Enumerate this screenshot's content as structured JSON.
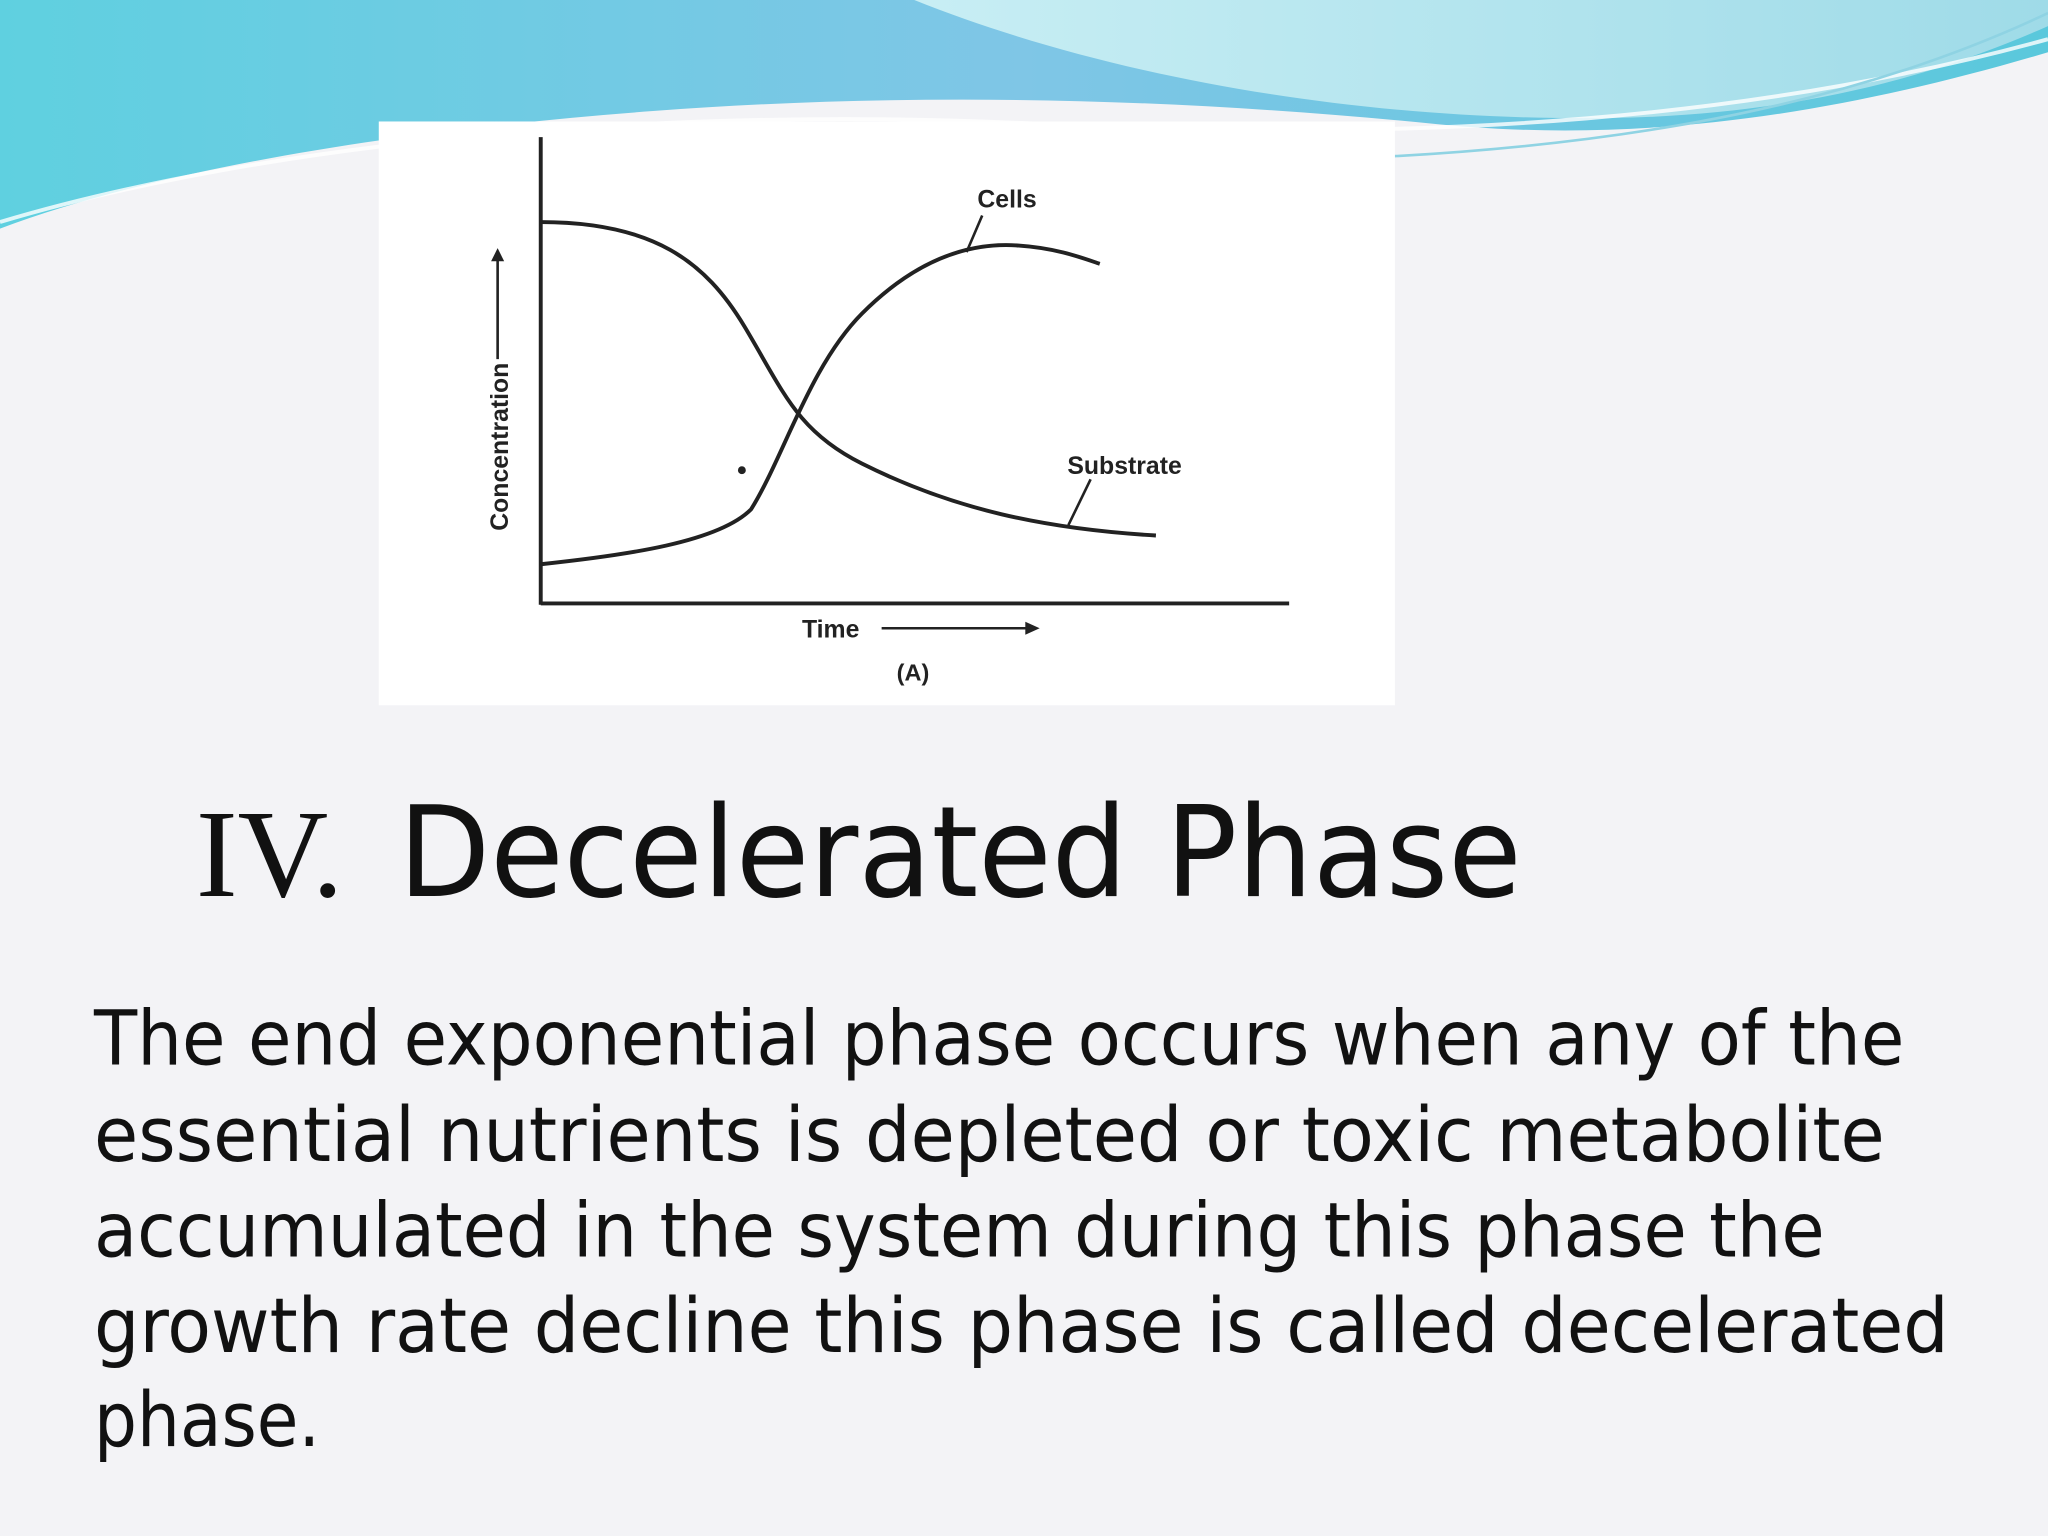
{
  "figure": {
    "y_label": "Concentration",
    "x_label": "Time",
    "caption": "(A)",
    "curves": [
      "Cells",
      "Substrate"
    ]
  },
  "title": {
    "numeral": "IV.",
    "text": "Decelerated Phase"
  },
  "body": {
    "lines": [
      "The end exponential phase occurs when any of the",
      "essential nutrients is depleted or toxic metabolite",
      "accumulated in the system during this phase the",
      "growth rate decline this phase is called decelerated",
      "phase."
    ]
  }
}
